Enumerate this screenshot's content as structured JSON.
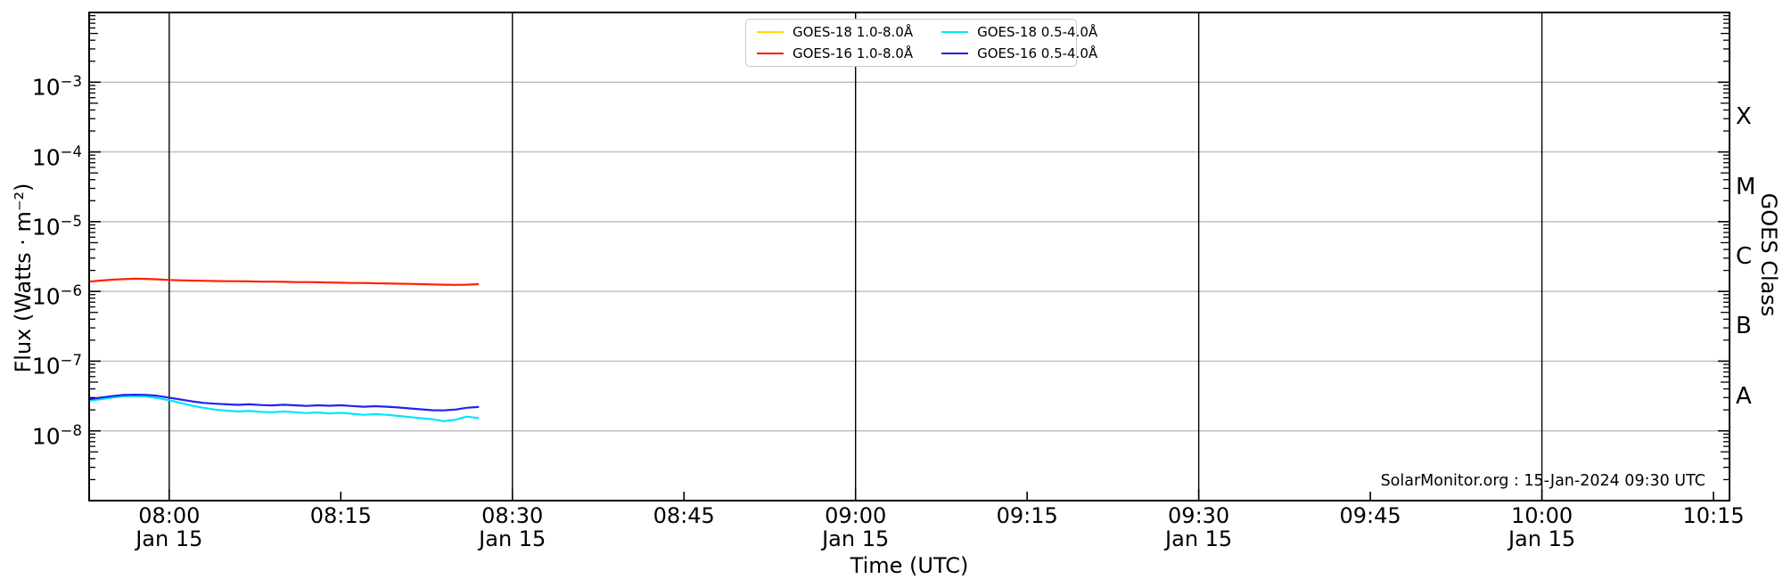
{
  "watermark": {
    "text": "SolarMonitor.org : 15-Jan-2024 09:30 UTC"
  },
  "colors": {
    "background": "#ffffff",
    "y_grid": "#b3b3b3",
    "x_grid": "#000000",
    "axis": "#000000",
    "legend_border": "#c9c9c9",
    "text": "#000000"
  },
  "chart_data": {
    "type": "line",
    "title": "",
    "xlabel": "Time (UTC)",
    "ylabel": "Flux (Watts · m⁻²)",
    "ylabel_right": "GOES Class",
    "grid": "on",
    "legend_position": "top-center",
    "x_axis": {
      "range": [
        "07:53",
        "10:16"
      ],
      "ticks": [
        {
          "label": "08:00",
          "date": "Jan 15",
          "major": true
        },
        {
          "label": "08:15",
          "major": false
        },
        {
          "label": "08:30",
          "date": "Jan 15",
          "major": true
        },
        {
          "label": "08:45",
          "major": false
        },
        {
          "label": "09:00",
          "date": "Jan 15",
          "major": true
        },
        {
          "label": "09:15",
          "major": false
        },
        {
          "label": "09:30",
          "date": "Jan 15",
          "major": true
        },
        {
          "label": "09:45",
          "major": false
        },
        {
          "label": "10:00",
          "date": "Jan 15",
          "major": true
        },
        {
          "label": "10:15",
          "major": false
        }
      ]
    },
    "y_axis": {
      "scale": "log",
      "units": "Watts per square metre",
      "range_exponents": [
        -9,
        -2
      ],
      "tick_exponents": [
        -3,
        -4,
        -5,
        -6,
        -7,
        -8
      ]
    },
    "goes_classes": [
      {
        "label": "X",
        "between_exponents": [
          -4,
          -3
        ]
      },
      {
        "label": "M",
        "between_exponents": [
          -5,
          -4
        ]
      },
      {
        "label": "C",
        "between_exponents": [
          -6,
          -5
        ]
      },
      {
        "label": "B",
        "between_exponents": [
          -7,
          -6
        ]
      },
      {
        "label": "A",
        "between_exponents": [
          -8,
          -7
        ]
      }
    ],
    "x": [
      "07:53",
      "07:54",
      "07:55",
      "07:56",
      "07:57",
      "07:58",
      "07:59",
      "08:00",
      "08:01",
      "08:02",
      "08:03",
      "08:04",
      "08:05",
      "08:06",
      "08:07",
      "08:08",
      "08:09",
      "08:10",
      "08:11",
      "08:12",
      "08:13",
      "08:14",
      "08:15",
      "08:16",
      "08:17",
      "08:18",
      "08:19",
      "08:20",
      "08:21",
      "08:22",
      "08:23",
      "08:24",
      "08:25",
      "08:26",
      "08:27"
    ],
    "series": [
      {
        "name": "GOES-18 1.0-8.0Å",
        "color": "#ffd800",
        "values": []
      },
      {
        "name": "GOES-16 1.0-8.0Å",
        "color": "#ff2000",
        "values": [
          1.38e-06,
          1.43e-06,
          1.47e-06,
          1.5e-06,
          1.52e-06,
          1.51e-06,
          1.49e-06,
          1.46e-06,
          1.44e-06,
          1.43e-06,
          1.42e-06,
          1.41e-06,
          1.4e-06,
          1.4e-06,
          1.39e-06,
          1.38e-06,
          1.38e-06,
          1.37e-06,
          1.36e-06,
          1.36e-06,
          1.35e-06,
          1.34e-06,
          1.33e-06,
          1.32e-06,
          1.32e-06,
          1.31e-06,
          1.3e-06,
          1.29e-06,
          1.28e-06,
          1.27e-06,
          1.26e-06,
          1.25e-06,
          1.24e-06,
          1.25e-06,
          1.27e-06
        ]
      },
      {
        "name": "GOES-18 0.5-4.0Å",
        "color": "#00e5ff",
        "values": [
          2.7e-08,
          2.85e-08,
          3e-08,
          3.12e-08,
          3.16e-08,
          3.1e-08,
          2.95e-08,
          2.75e-08,
          2.52e-08,
          2.3e-08,
          2.14e-08,
          2.02e-08,
          1.95e-08,
          1.9e-08,
          1.93e-08,
          1.88e-08,
          1.85e-08,
          1.9e-08,
          1.85e-08,
          1.8e-08,
          1.84e-08,
          1.78e-08,
          1.82e-08,
          1.76e-08,
          1.7e-08,
          1.74e-08,
          1.7e-08,
          1.64e-08,
          1.58e-08,
          1.52e-08,
          1.47e-08,
          1.38e-08,
          1.44e-08,
          1.6e-08,
          1.53e-08
        ]
      },
      {
        "name": "GOES-16 0.5-4.0Å",
        "color": "#2222ee",
        "values": [
          2.85e-08,
          3e-08,
          3.15e-08,
          3.27e-08,
          3.3e-08,
          3.28e-08,
          3.18e-08,
          3e-08,
          2.82e-08,
          2.65e-08,
          2.52e-08,
          2.45e-08,
          2.4e-08,
          2.36e-08,
          2.4e-08,
          2.35e-08,
          2.32e-08,
          2.37e-08,
          2.33e-08,
          2.28e-08,
          2.33e-08,
          2.29e-08,
          2.33e-08,
          2.27e-08,
          2.22e-08,
          2.26e-08,
          2.22e-08,
          2.17e-08,
          2.1e-08,
          2.04e-08,
          1.98e-08,
          1.97e-08,
          2.02e-08,
          2.14e-08,
          2.2e-08
        ]
      }
    ]
  }
}
